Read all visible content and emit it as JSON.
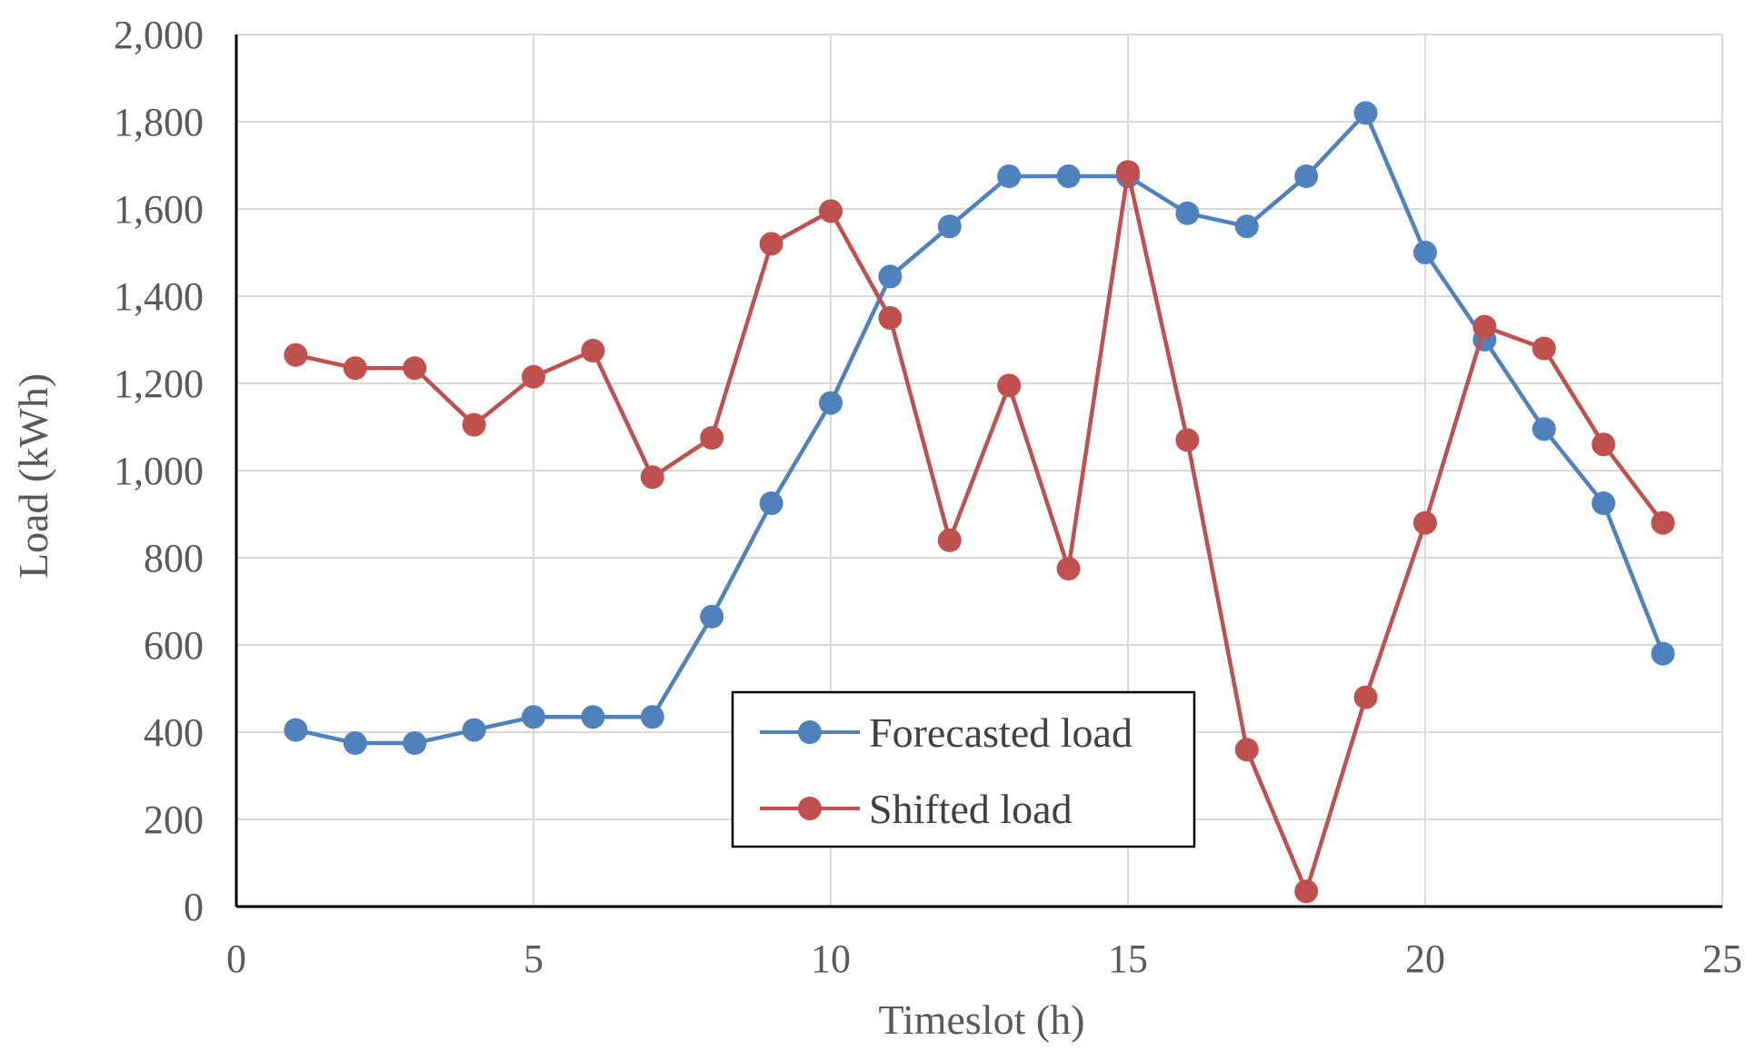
{
  "chart_data": {
    "type": "line",
    "title": "",
    "xlabel": "Timeslot (h)",
    "ylabel": "Load (kWh)",
    "xlim": [
      0,
      25
    ],
    "ylim": [
      0,
      2000
    ],
    "x_ticks": [
      0,
      5,
      10,
      15,
      20,
      25
    ],
    "y_ticks": [
      0,
      200,
      400,
      600,
      800,
      1000,
      1200,
      1400,
      1600,
      1800,
      2000
    ],
    "x_tick_labels": [
      "0",
      "5",
      "10",
      "15",
      "20",
      "25"
    ],
    "y_tick_labels": [
      "0",
      "200",
      "400",
      "600",
      "800",
      "1,000",
      "1,200",
      "1,400",
      "1,600",
      "1,800",
      "2,000"
    ],
    "grid": true,
    "legend_position": "bottom-center",
    "x": [
      1,
      2,
      3,
      4,
      5,
      6,
      7,
      8,
      9,
      10,
      11,
      12,
      13,
      14,
      15,
      16,
      17,
      18,
      19,
      20,
      21,
      22,
      23,
      24
    ],
    "series": [
      {
        "name": "Forecasted load",
        "color": "#4f81bd",
        "values": [
          405,
          375,
          375,
          405,
          435,
          435,
          435,
          665,
          925,
          1155,
          1445,
          1560,
          1675,
          1675,
          1675,
          1590,
          1560,
          1675,
          1820,
          1500,
          1300,
          1095,
          925,
          580
        ]
      },
      {
        "name": "Shifted load",
        "color": "#c0504d",
        "values": [
          1265,
          1235,
          1235,
          1105,
          1215,
          1275,
          985,
          1075,
          1520,
          1595,
          1350,
          840,
          1195,
          775,
          1685,
          1070,
          360,
          35,
          480,
          880,
          1330,
          1280,
          1060,
          880
        ]
      }
    ]
  }
}
